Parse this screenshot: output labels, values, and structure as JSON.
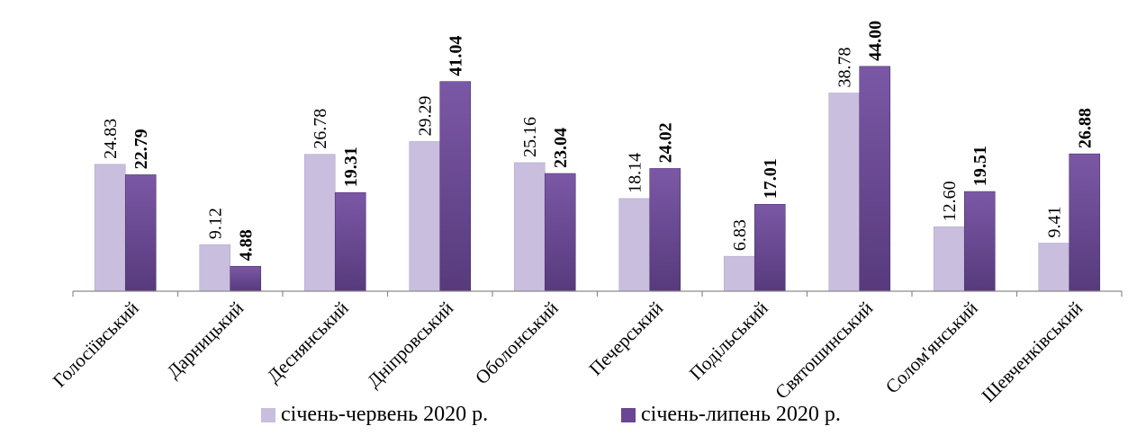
{
  "chart_data": {
    "type": "bar",
    "categories": [
      "Голосіївський",
      "Дарницький",
      "Деснянський",
      "Дніпровський",
      "Оболонський",
      "Печерський",
      "Подільський",
      "Святошинський",
      "Солом'янський",
      "Шевченківський"
    ],
    "series": [
      {
        "name": "січень-червень 2020 р.",
        "values": [
          24.83,
          9.12,
          26.78,
          29.29,
          25.16,
          18.14,
          6.83,
          38.78,
          12.6,
          9.41
        ],
        "labels": [
          "24.83",
          "9.12",
          "26.78",
          "29.29",
          "25.16",
          "18.14",
          "6.83",
          "38.78",
          "12.60",
          "9.41"
        ],
        "color": "#c9bedd",
        "label_bold": false
      },
      {
        "name": "січень-липень 2020 р.",
        "values": [
          22.79,
          4.88,
          19.31,
          41.04,
          23.04,
          24.02,
          17.01,
          44.0,
          19.51,
          26.88
        ],
        "labels": [
          "22.79",
          "4.88",
          "19.31",
          "41.04",
          "23.04",
          "24.02",
          "17.01",
          "44.00",
          "19.51",
          "26.88"
        ],
        "color": "#6a4693",
        "label_bold": true
      }
    ],
    "ylim": [
      0,
      44.5
    ],
    "grid": false,
    "legend_position": "bottom"
  }
}
